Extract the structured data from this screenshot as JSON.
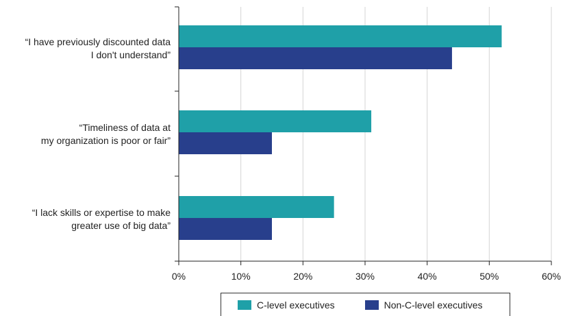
{
  "chart_data": {
    "type": "bar",
    "orientation": "horizontal",
    "categories": [
      [
        "“I have previously discounted data",
        "I don't understand”"
      ],
      [
        "“Timeliness of data at",
        "my organization is poor or fair”"
      ],
      [
        "“I lack skills or expertise to make",
        "greater use of big data”"
      ]
    ],
    "series": [
      {
        "name": "C-level executives",
        "color": "#1fa0a8",
        "values": [
          52,
          31,
          25
        ]
      },
      {
        "name": "Non-C-level executives",
        "color": "#283f8c",
        "values": [
          44,
          15,
          15
        ]
      }
    ],
    "xlim": [
      0,
      60
    ],
    "xticks": [
      0,
      10,
      20,
      30,
      40,
      50,
      60
    ],
    "xtick_labels": [
      "0%",
      "10%",
      "20%",
      "30%",
      "40%",
      "50%",
      "60%"
    ],
    "grid": "vertical",
    "legend_position": "bottom"
  }
}
